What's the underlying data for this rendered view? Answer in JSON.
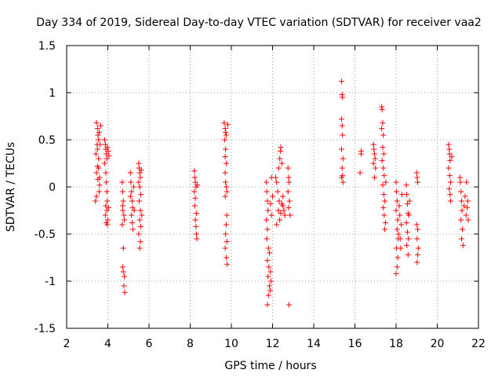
{
  "chart_data": {
    "type": "scatter",
    "title": "Day 334 of 2019, Sidereal Day-to-day VTEC variation (SDTVAR) for receiver vaa2",
    "xlabel": "GPS time / hours",
    "ylabel": "SDTVAR / TECUs",
    "xlim": [
      2,
      22
    ],
    "ylim": [
      -1.5,
      1.5
    ],
    "x_ticks": [
      2,
      4,
      6,
      8,
      10,
      12,
      14,
      16,
      18,
      20,
      22
    ],
    "y_ticks": [
      -1.5,
      -1,
      -0.5,
      0,
      0.5,
      1,
      1.5
    ],
    "x_tick_labels": [
      "2",
      "4",
      "6",
      "8",
      "10",
      "12",
      "14",
      "16",
      "18",
      "20",
      "22"
    ],
    "y_tick_labels": [
      "-1.5",
      "-1",
      "-0.5",
      "0",
      "0.5",
      "1",
      "1.5"
    ],
    "grid": true,
    "marker": "+",
    "color": "#ff0000",
    "series": [
      {
        "name": "vaa2",
        "points": [
          [
            3.45,
            0.68
          ],
          [
            3.5,
            0.62
          ],
          [
            3.52,
            0.55
          ],
          [
            3.55,
            0.5
          ],
          [
            3.48,
            0.45
          ],
          [
            3.5,
            0.4
          ],
          [
            3.42,
            0.35
          ],
          [
            3.55,
            0.3
          ],
          [
            3.5,
            0.22
          ],
          [
            3.45,
            0.15
          ],
          [
            3.52,
            0.08
          ],
          [
            3.6,
            0.02
          ],
          [
            3.58,
            -0.05
          ],
          [
            3.6,
            0.1
          ],
          [
            3.55,
            0.2
          ],
          [
            3.62,
            0.45
          ],
          [
            3.58,
            0.58
          ],
          [
            3.65,
            0.65
          ],
          [
            3.4,
            -0.15
          ],
          [
            3.45,
            -0.1
          ],
          [
            3.85,
            0.5
          ],
          [
            3.88,
            0.45
          ],
          [
            3.9,
            0.4
          ],
          [
            3.92,
            0.35
          ],
          [
            3.95,
            0.3
          ],
          [
            3.98,
            0.42
          ],
          [
            3.85,
            0.25
          ],
          [
            3.9,
            0.15
          ],
          [
            3.92,
            0.05
          ],
          [
            3.95,
            -0.05
          ],
          [
            3.97,
            -0.15
          ],
          [
            3.9,
            -0.2
          ],
          [
            3.95,
            -0.25
          ],
          [
            3.88,
            -0.3
          ],
          [
            3.92,
            -0.38
          ],
          [
            3.98,
            -0.4
          ],
          [
            4.02,
            0.38
          ],
          [
            4.05,
            0.33
          ],
          [
            4.03,
            -0.22
          ],
          [
            4.0,
            -0.35
          ],
          [
            4.7,
            0.05
          ],
          [
            4.72,
            -0.05
          ],
          [
            4.75,
            -0.15
          ],
          [
            4.73,
            -0.25
          ],
          [
            4.78,
            -0.3
          ],
          [
            4.7,
            -0.4
          ],
          [
            4.75,
            -0.65
          ],
          [
            4.72,
            -0.85
          ],
          [
            4.8,
            -0.95
          ],
          [
            4.78,
            -1.05
          ],
          [
            4.82,
            -1.12
          ],
          [
            4.75,
            -0.9
          ],
          [
            4.72,
            -0.2
          ],
          [
            4.8,
            -0.35
          ],
          [
            5.1,
            0.15
          ],
          [
            5.12,
            0.05
          ],
          [
            5.15,
            -0.05
          ],
          [
            5.18,
            -0.15
          ],
          [
            5.2,
            -0.22
          ],
          [
            5.15,
            -0.3
          ],
          [
            5.18,
            -0.38
          ],
          [
            5.22,
            -0.45
          ],
          [
            5.1,
            -0.1
          ],
          [
            5.25,
            0.0
          ],
          [
            5.28,
            -0.25
          ],
          [
            5.5,
            0.25
          ],
          [
            5.52,
            0.2
          ],
          [
            5.55,
            0.15
          ],
          [
            5.58,
            0.1
          ],
          [
            5.5,
            0.05
          ],
          [
            5.55,
            0.0
          ],
          [
            5.6,
            -0.08
          ],
          [
            5.52,
            -0.15
          ],
          [
            5.58,
            -0.25
          ],
          [
            5.55,
            -0.35
          ],
          [
            5.6,
            -0.42
          ],
          [
            5.5,
            -0.5
          ],
          [
            5.58,
            -0.58
          ],
          [
            5.55,
            -0.65
          ],
          [
            5.62,
            0.18
          ],
          [
            5.65,
            -0.3
          ],
          [
            8.2,
            0.17
          ],
          [
            8.22,
            0.1
          ],
          [
            8.25,
            0.05
          ],
          [
            8.28,
            0.0
          ],
          [
            8.2,
            -0.05
          ],
          [
            8.25,
            -0.12
          ],
          [
            8.22,
            -0.2
          ],
          [
            8.3,
            -0.28
          ],
          [
            8.25,
            -0.35
          ],
          [
            8.28,
            -0.42
          ],
          [
            8.3,
            -0.5
          ],
          [
            8.32,
            -0.55
          ],
          [
            8.35,
            0.02
          ],
          [
            9.65,
            0.68
          ],
          [
            9.7,
            0.62
          ],
          [
            9.72,
            0.58
          ],
          [
            9.75,
            0.55
          ],
          [
            9.68,
            0.5
          ],
          [
            9.72,
            0.4
          ],
          [
            9.7,
            0.32
          ],
          [
            9.75,
            0.25
          ],
          [
            9.7,
            0.15
          ],
          [
            9.72,
            0.05
          ],
          [
            9.75,
            0.0
          ],
          [
            9.78,
            -0.05
          ],
          [
            9.7,
            -0.1
          ],
          [
            9.75,
            -0.4
          ],
          [
            9.72,
            -0.5
          ],
          [
            9.78,
            -0.58
          ],
          [
            9.7,
            -0.65
          ],
          [
            9.75,
            -0.75
          ],
          [
            9.8,
            -0.82
          ],
          [
            9.82,
            0.66
          ],
          [
            9.78,
            -0.3
          ],
          [
            11.7,
            0.05
          ],
          [
            11.72,
            -0.05
          ],
          [
            11.75,
            -0.15
          ],
          [
            11.78,
            -0.25
          ],
          [
            11.7,
            -0.35
          ],
          [
            11.75,
            -0.45
          ],
          [
            11.72,
            -0.55
          ],
          [
            11.8,
            -0.65
          ],
          [
            11.75,
            -0.78
          ],
          [
            11.82,
            -0.85
          ],
          [
            11.78,
            -0.95
          ],
          [
            11.85,
            -1.05
          ],
          [
            11.8,
            -1.15
          ],
          [
            11.75,
            -1.25
          ],
          [
            11.88,
            -1.1
          ],
          [
            11.9,
            -0.9
          ],
          [
            11.85,
            -0.7
          ],
          [
            11.95,
            -0.3
          ],
          [
            11.9,
            -0.18
          ],
          [
            11.95,
            0.1
          ],
          [
            12.0,
            -0.1
          ],
          [
            11.92,
            -1.0
          ],
          [
            12.15,
            0.1
          ],
          [
            12.2,
            0.05
          ],
          [
            12.25,
            -0.05
          ],
          [
            12.3,
            0.2
          ],
          [
            12.35,
            0.3
          ],
          [
            12.38,
            0.38
          ],
          [
            12.4,
            0.42
          ],
          [
            12.32,
            -0.15
          ],
          [
            12.28,
            -0.25
          ],
          [
            12.35,
            -0.35
          ],
          [
            12.2,
            -0.4
          ],
          [
            12.45,
            0.25
          ],
          [
            12.5,
            -0.2
          ],
          [
            12.55,
            -0.25
          ],
          [
            12.5,
            -0.1
          ],
          [
            12.6,
            -0.3
          ],
          [
            12.45,
            -0.18
          ],
          [
            12.4,
            -0.28
          ],
          [
            12.75,
            0.2
          ],
          [
            12.78,
            0.1
          ],
          [
            12.8,
            0.05
          ],
          [
            12.75,
            -0.05
          ],
          [
            12.82,
            -0.15
          ],
          [
            12.78,
            -0.22
          ],
          [
            12.85,
            -0.3
          ],
          [
            12.8,
            -1.25
          ],
          [
            15.35,
            1.12
          ],
          [
            15.38,
            0.98
          ],
          [
            15.4,
            0.95
          ],
          [
            15.35,
            0.72
          ],
          [
            15.38,
            0.65
          ],
          [
            15.4,
            0.55
          ],
          [
            15.35,
            0.4
          ],
          [
            15.42,
            0.3
          ],
          [
            15.38,
            0.2
          ],
          [
            15.4,
            0.12
          ],
          [
            15.35,
            0.1
          ],
          [
            15.42,
            0.05
          ],
          [
            16.3,
            0.38
          ],
          [
            16.3,
            0.35
          ],
          [
            16.25,
            0.15
          ],
          [
            16.9,
            0.45
          ],
          [
            16.92,
            0.4
          ],
          [
            16.95,
            0.35
          ],
          [
            16.98,
            0.3
          ],
          [
            16.9,
            0.25
          ],
          [
            17.0,
            0.2
          ],
          [
            16.95,
            0.1
          ],
          [
            17.3,
            0.85
          ],
          [
            17.32,
            0.82
          ],
          [
            17.35,
            0.68
          ],
          [
            17.3,
            0.62
          ],
          [
            17.38,
            0.55
          ],
          [
            17.35,
            0.42
          ],
          [
            17.4,
            0.35
          ],
          [
            17.32,
            0.28
          ],
          [
            17.38,
            0.2
          ],
          [
            17.42,
            0.12
          ],
          [
            17.35,
            0.02
          ],
          [
            17.4,
            -0.08
          ],
          [
            17.45,
            -0.15
          ],
          [
            17.38,
            -0.22
          ],
          [
            17.42,
            -0.3
          ],
          [
            17.48,
            -0.38
          ],
          [
            17.45,
            -0.45
          ],
          [
            17.5,
            0.05
          ],
          [
            18.0,
            0.05
          ],
          [
            18.02,
            -0.05
          ],
          [
            18.05,
            -0.15
          ],
          [
            18.0,
            -0.25
          ],
          [
            18.08,
            -0.35
          ],
          [
            18.05,
            -0.45
          ],
          [
            18.1,
            -0.55
          ],
          [
            18.02,
            -0.65
          ],
          [
            18.08,
            -0.75
          ],
          [
            18.05,
            -0.85
          ],
          [
            18.0,
            -0.92
          ],
          [
            18.12,
            -0.5
          ],
          [
            18.15,
            -0.2
          ],
          [
            18.18,
            -0.3
          ],
          [
            18.2,
            -0.55
          ],
          [
            18.22,
            -0.65
          ],
          [
            18.25,
            -0.4
          ],
          [
            18.28,
            -0.08
          ],
          [
            18.5,
            0.02
          ],
          [
            18.52,
            -0.08
          ],
          [
            18.55,
            -0.18
          ],
          [
            18.58,
            -0.28
          ],
          [
            18.5,
            -0.38
          ],
          [
            18.55,
            -0.48
          ],
          [
            18.6,
            -0.55
          ],
          [
            18.52,
            -0.62
          ],
          [
            18.58,
            -0.72
          ],
          [
            18.62,
            -0.3
          ],
          [
            18.65,
            -0.15
          ],
          [
            19.0,
            0.15
          ],
          [
            19.02,
            0.1
          ],
          [
            19.05,
            0.05
          ],
          [
            19.0,
            -0.4
          ],
          [
            19.05,
            -0.45
          ],
          [
            19.02,
            -0.55
          ],
          [
            19.08,
            -0.65
          ],
          [
            19.05,
            -0.72
          ],
          [
            19.02,
            -0.8
          ],
          [
            20.55,
            0.45
          ],
          [
            20.58,
            0.4
          ],
          [
            20.6,
            0.35
          ],
          [
            20.62,
            0.28
          ],
          [
            20.55,
            0.2
          ],
          [
            20.6,
            0.12
          ],
          [
            20.65,
            0.05
          ],
          [
            20.58,
            -0.02
          ],
          [
            20.62,
            -0.08
          ],
          [
            20.65,
            -0.15
          ],
          [
            20.7,
            0.32
          ],
          [
            21.1,
            0.1
          ],
          [
            21.12,
            0.05
          ],
          [
            21.15,
            -0.05
          ],
          [
            21.18,
            -0.15
          ],
          [
            21.2,
            -0.25
          ],
          [
            21.15,
            -0.35
          ],
          [
            21.22,
            -0.45
          ],
          [
            21.18,
            -0.55
          ],
          [
            21.25,
            -0.62
          ],
          [
            21.3,
            -0.2
          ],
          [
            21.35,
            -0.1
          ],
          [
            21.4,
            -0.3
          ],
          [
            21.45,
            -0.22
          ],
          [
            21.5,
            -0.35
          ],
          [
            21.42,
            0.05
          ],
          [
            21.48,
            -0.15
          ]
        ]
      }
    ]
  }
}
